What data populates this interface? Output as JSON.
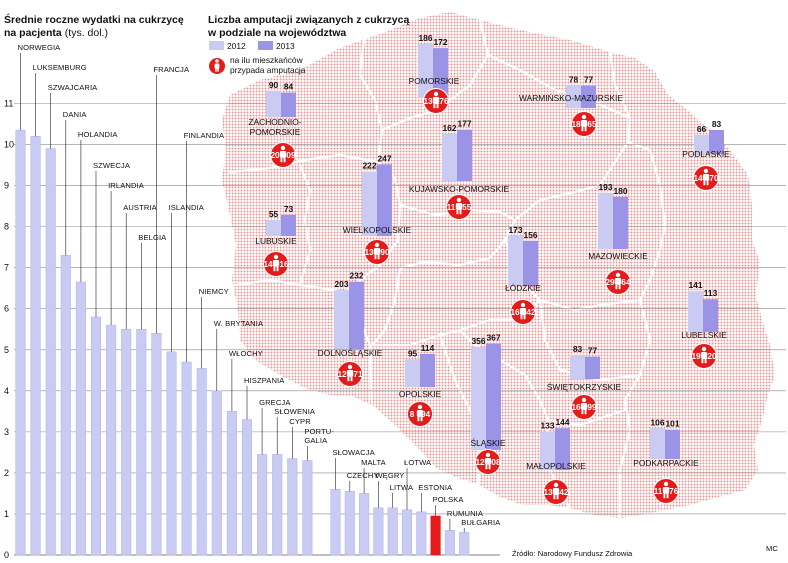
{
  "chart_data": [
    {
      "type": "bar",
      "title": "Średnie roczne wydatki na cukrzycę",
      "subtitle_bold": "na pacjenta",
      "subtitle_unit": "(tys. dol.)",
      "ylim": [
        0,
        11
      ],
      "yticks": [
        0,
        1,
        2,
        3,
        4,
        5,
        6,
        7,
        8,
        9,
        10,
        11
      ],
      "categories": [
        "NORWEGIA",
        "LUKSEMBURG",
        "SZWAJCARIA",
        "DANIA",
        "HOLANDIA",
        "SZWECJA",
        "IRLANDIA",
        "AUSTRIA",
        "BELGIA",
        "FRANCJA",
        "ISLANDIA",
        "FINLANDIA",
        "NIEMCY",
        "W. BRYTANIA",
        "WŁOCHY",
        "HISZPANIA",
        "GRECJA",
        "SŁOWENIA",
        "CYPR",
        "PORTU-GALIA",
        "SŁOWACJA",
        "CZECHY",
        "MALTA",
        "WĘGRY",
        "LITWA",
        "ŁOTWA",
        "ESTONIA",
        "POLSKA",
        "RUMUNIA",
        "BUŁGARIA"
      ],
      "values": [
        10.35,
        10.2,
        9.9,
        7.3,
        6.65,
        5.8,
        5.6,
        5.5,
        5.5,
        5.4,
        4.95,
        4.7,
        4.55,
        4.0,
        3.5,
        3.3,
        2.45,
        2.45,
        2.35,
        2.3,
        1.6,
        1.55,
        1.5,
        1.15,
        1.15,
        1.1,
        1.05,
        0.95,
        0.6,
        0.55
      ],
      "highlight": "POLSKA",
      "colors": {
        "bar": "#c9cbf3",
        "bar_stroke": "#b4b7ec",
        "highlight": "#e41b1b"
      }
    },
    {
      "type": "bar",
      "title_line1": "Liczba amputacji związanych z cukrzycą",
      "title_line2": "w podziale na województwa",
      "series": [
        {
          "name": "2012",
          "color": "#c9cbf3"
        },
        {
          "name": "2013",
          "color": "#9b93e6"
        }
      ],
      "ratio_legend": [
        "na ilu mieszkańców",
        "przypada amputacja"
      ],
      "regions": [
        {
          "name": "POMORSKIE",
          "values": [
            186,
            172
          ],
          "ratio": "13 276"
        },
        {
          "name": "WARMIŃSKO-MAZURSKIE",
          "values": [
            78,
            77
          ],
          "ratio": "18 865"
        },
        {
          "name": "ZACHODNIO-POMORSKIE",
          "name_lines": [
            "ZACHODNIO-",
            "POMORSKIE"
          ],
          "values": [
            90,
            84
          ],
          "ratio": "20 509"
        },
        {
          "name": "PODLASKIE",
          "values": [
            66,
            83
          ],
          "ratio": "14 470"
        },
        {
          "name": "KUJAWSKO-POMORSKIE",
          "values": [
            162,
            177
          ],
          "ratio": "11 855"
        },
        {
          "name": "LUBUSKIE",
          "values": [
            55,
            73
          ],
          "ratio": "14 016"
        },
        {
          "name": "WIELKOPOLSKIE",
          "values": [
            222,
            247
          ],
          "ratio": "13 990"
        },
        {
          "name": "MAZOWIECKIE",
          "values": [
            193,
            180
          ],
          "ratio": "29 364"
        },
        {
          "name": "ŁÓDZKIE",
          "values": [
            173,
            156
          ],
          "ratio": "16 242"
        },
        {
          "name": "DOLNOŚLĄSKIE",
          "values": [
            203,
            232
          ],
          "ratio": "12 571"
        },
        {
          "name": "LUBELSKIE",
          "values": [
            141,
            113
          ],
          "ratio": "19 220"
        },
        {
          "name": "OPOLSKIE",
          "values": [
            95,
            114
          ],
          "ratio": "8 894"
        },
        {
          "name": "ŚLĄSKIE",
          "values": [
            356,
            367
          ],
          "ratio": "12 608"
        },
        {
          "name": "ŚWIĘTOKRZYSKIE",
          "values": [
            83,
            77
          ],
          "ratio": "16 599"
        },
        {
          "name": "MAŁOPOLSKIE",
          "values": [
            133,
            144
          ],
          "ratio": "13 242"
        },
        {
          "name": "PODKARPACKIE",
          "values": [
            106,
            101
          ],
          "ratio": "11 076"
        }
      ],
      "map_color": "#f2b0b0",
      "badge_color": "#e41b1b"
    }
  ],
  "source": "Źródło: Narodowy Fundusz Zdrowia",
  "signature": "MC"
}
